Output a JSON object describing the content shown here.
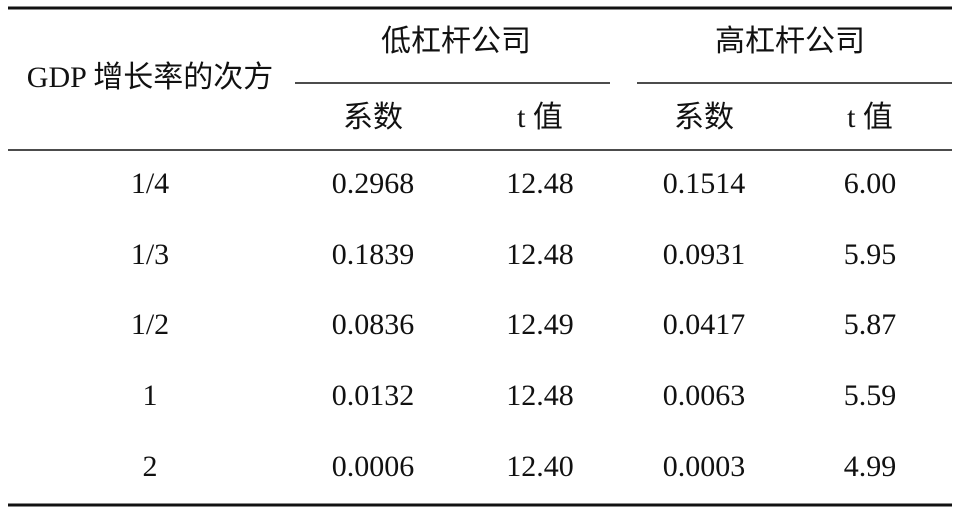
{
  "table": {
    "header": {
      "row_label": "GDP 增长率的次方",
      "groups": [
        {
          "title": "低杠杆公司",
          "columns": [
            "系数",
            "t 值"
          ]
        },
        {
          "title": "高杠杆公司",
          "columns": [
            "系数",
            "t 值"
          ]
        }
      ]
    },
    "rows": [
      [
        "1/4",
        "0.2968",
        "12.48",
        "0.1514",
        "6.00"
      ],
      [
        "1/3",
        "0.1839",
        "12.48",
        "0.0931",
        "5.95"
      ],
      [
        "1/2",
        "0.0836",
        "12.49",
        "0.0417",
        "5.87"
      ],
      [
        "1",
        "0.0132",
        "12.48",
        "0.0063",
        "5.59"
      ],
      [
        "2",
        "0.0006",
        "12.40",
        "0.0003",
        "4.99"
      ]
    ]
  }
}
